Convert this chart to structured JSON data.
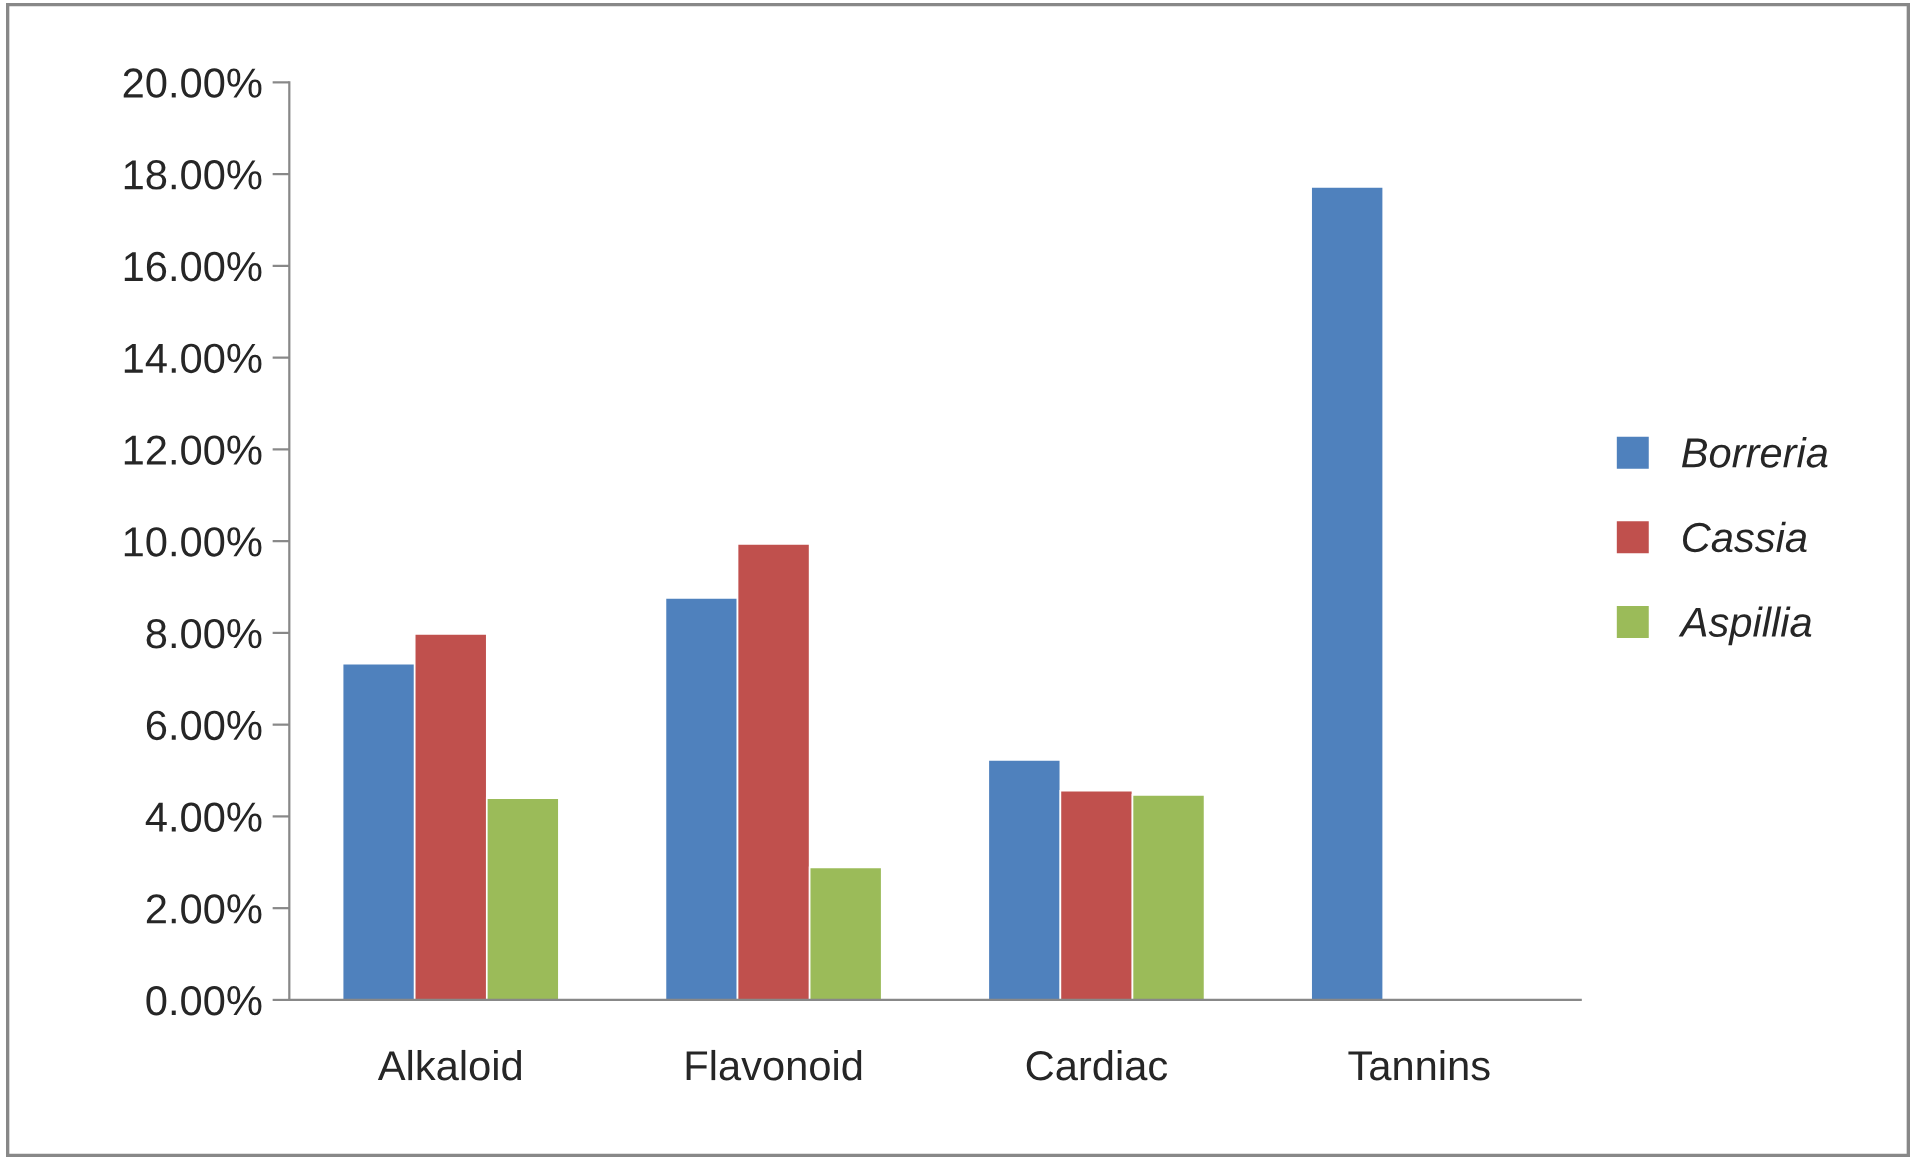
{
  "chart_data": {
    "type": "bar",
    "categories": [
      "Alkaloid",
      "Flavonoid",
      "Cardiac",
      "Tannins"
    ],
    "series": [
      {
        "name": "Borreria",
        "color": "#4f81bd",
        "values": [
          7.33,
          8.76,
          5.23,
          17.72
        ]
      },
      {
        "name": "Cassia",
        "color": "#c0504d",
        "values": [
          7.98,
          9.94,
          4.56,
          null
        ]
      },
      {
        "name": "Aspillia",
        "color": "#9bbb59",
        "values": [
          4.4,
          2.89,
          4.47,
          null
        ]
      }
    ],
    "ylim": [
      0,
      20
    ],
    "yticks": [
      {
        "value": 0,
        "label": "0.00%"
      },
      {
        "value": 2,
        "label": "2.00%"
      },
      {
        "value": 4,
        "label": "4.00%"
      },
      {
        "value": 6,
        "label": "6.00%"
      },
      {
        "value": 8,
        "label": "8.00%"
      },
      {
        "value": 10,
        "label": "10.00%"
      },
      {
        "value": 12,
        "label": "12.00%"
      },
      {
        "value": 14,
        "label": "14.00%"
      },
      {
        "value": 16,
        "label": "16.00%"
      },
      {
        "value": 18,
        "label": "18.00%"
      },
      {
        "value": 20,
        "label": "20.00%"
      }
    ],
    "grid": false,
    "legend": "right"
  }
}
